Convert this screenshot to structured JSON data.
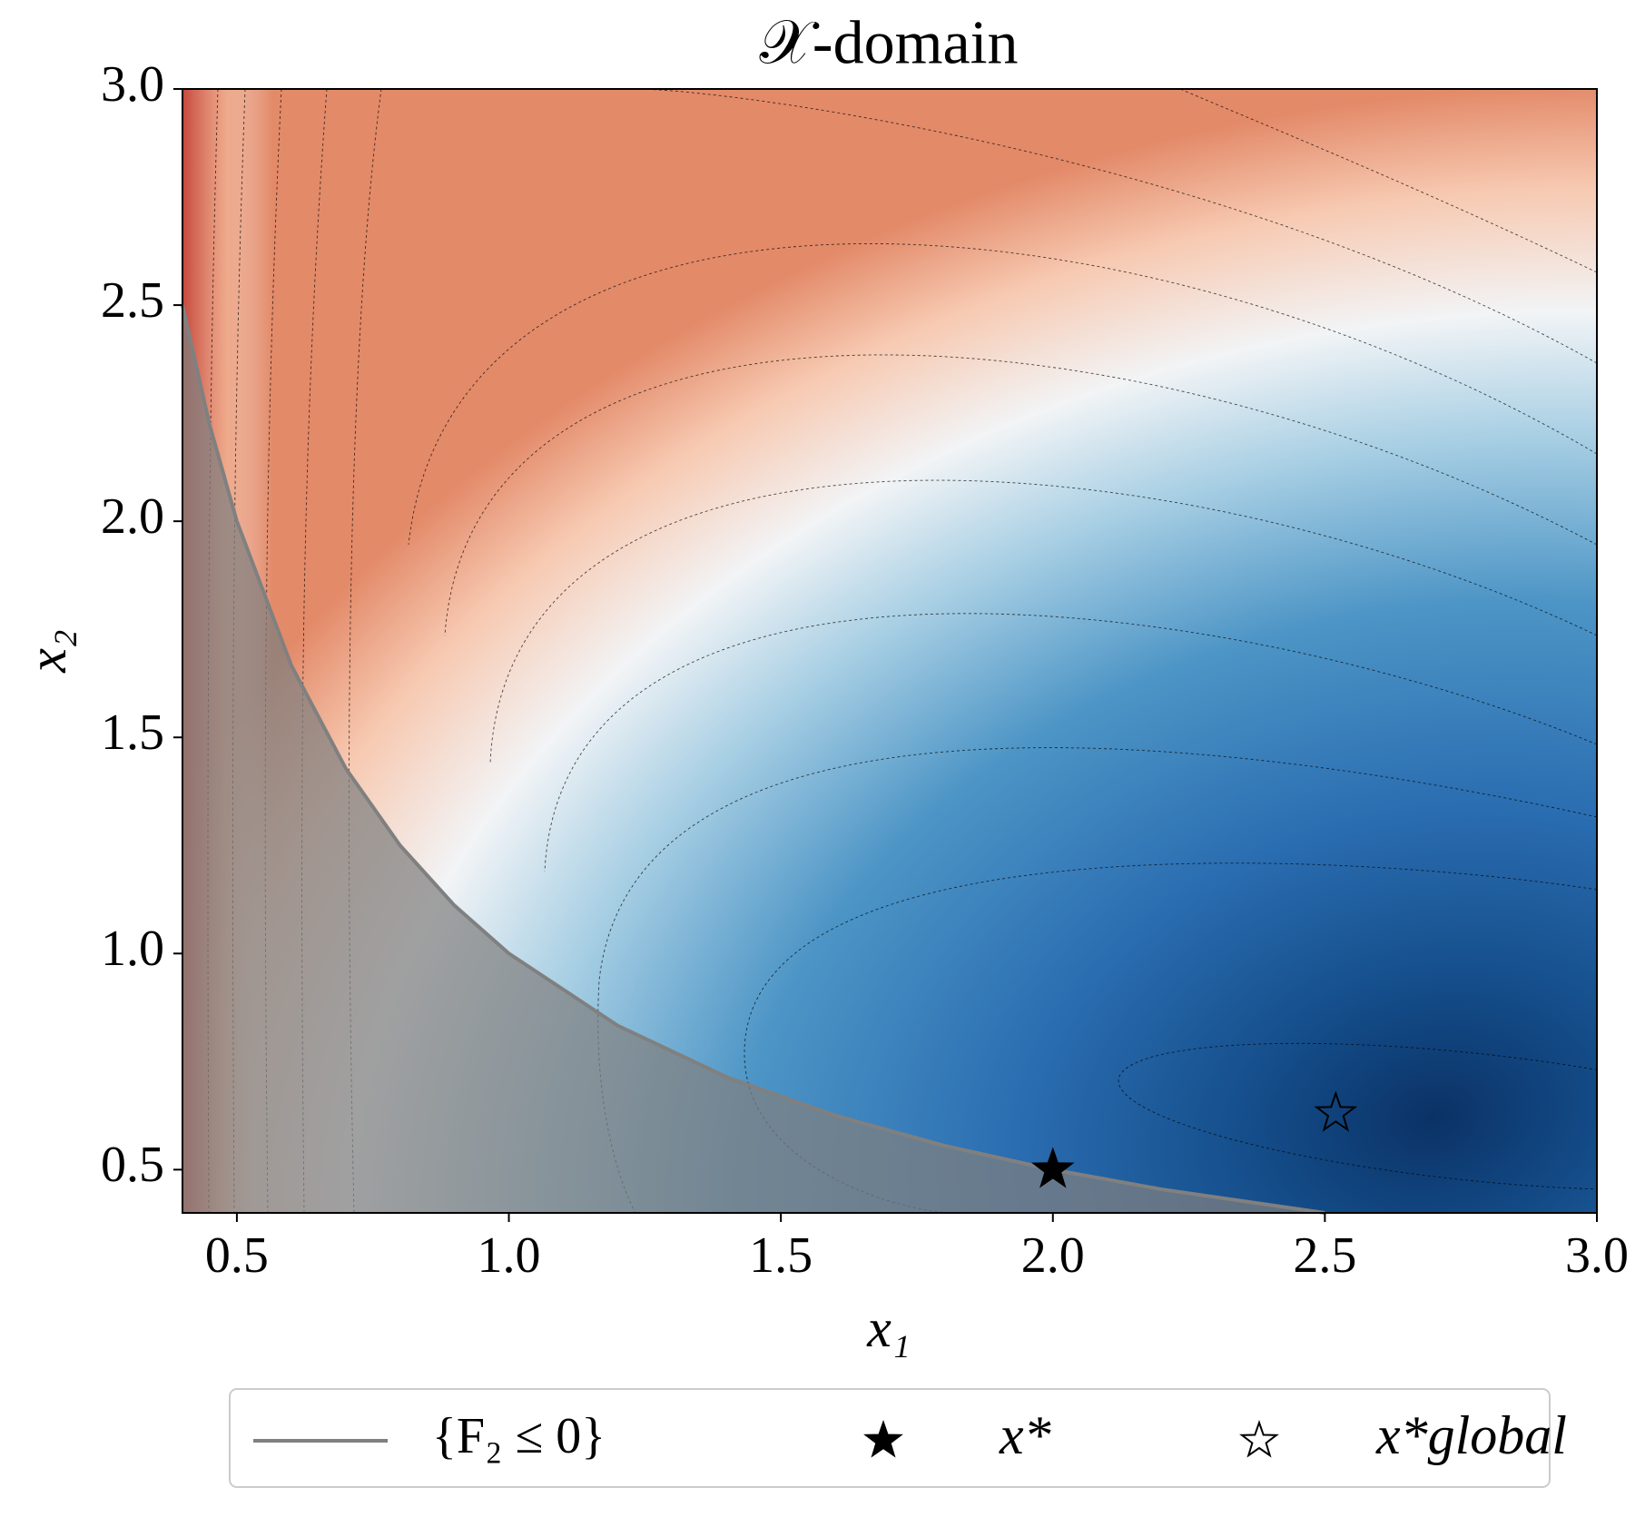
{
  "chart_data": {
    "type": "contour",
    "title": "𝒳-domain",
    "x_label": "x₁",
    "y_label": "x₂",
    "xlim": [
      0.4,
      3.0
    ],
    "ylim": [
      0.4,
      3.0
    ],
    "xticks": [
      0.5,
      {
        "value": 1,
        "label": "1.0"
      },
      1.5,
      {
        "value": 2,
        "label": "2.0"
      },
      2.5,
      {
        "value": 3,
        "label": "3.0"
      }
    ],
    "yticks": [
      0.5,
      {
        "value": 1,
        "label": "1.0"
      },
      1.5,
      {
        "value": 2,
        "label": "2.0"
      },
      2.5,
      {
        "value": 3,
        "label": "3.0"
      }
    ],
    "series": [
      {
        "name": "{F₂ ≤ 0}",
        "color": "#808080",
        "x": [
          0.4,
          0.45,
          0.5,
          0.6,
          0.7,
          0.8,
          0.9,
          1.0,
          1.2,
          1.4,
          1.6,
          1.8,
          2.0,
          2.2,
          2.5
        ],
        "values": [
          2.5,
          2.2222,
          2,
          1.6667,
          1.4286,
          1.25,
          1.1111,
          1,
          0.8333,
          0.7143,
          0.625,
          0.5556,
          0.5,
          0.4545,
          0.4
        ]
      }
    ],
    "points": [
      {
        "name": "x*",
        "x": 2.0,
        "y": 0.5,
        "color": "#000000",
        "filled": true
      },
      {
        "name": "x*global",
        "x": 2.52,
        "y": 0.63,
        "color": "#000000",
        "filled": false
      }
    ]
  }
}
